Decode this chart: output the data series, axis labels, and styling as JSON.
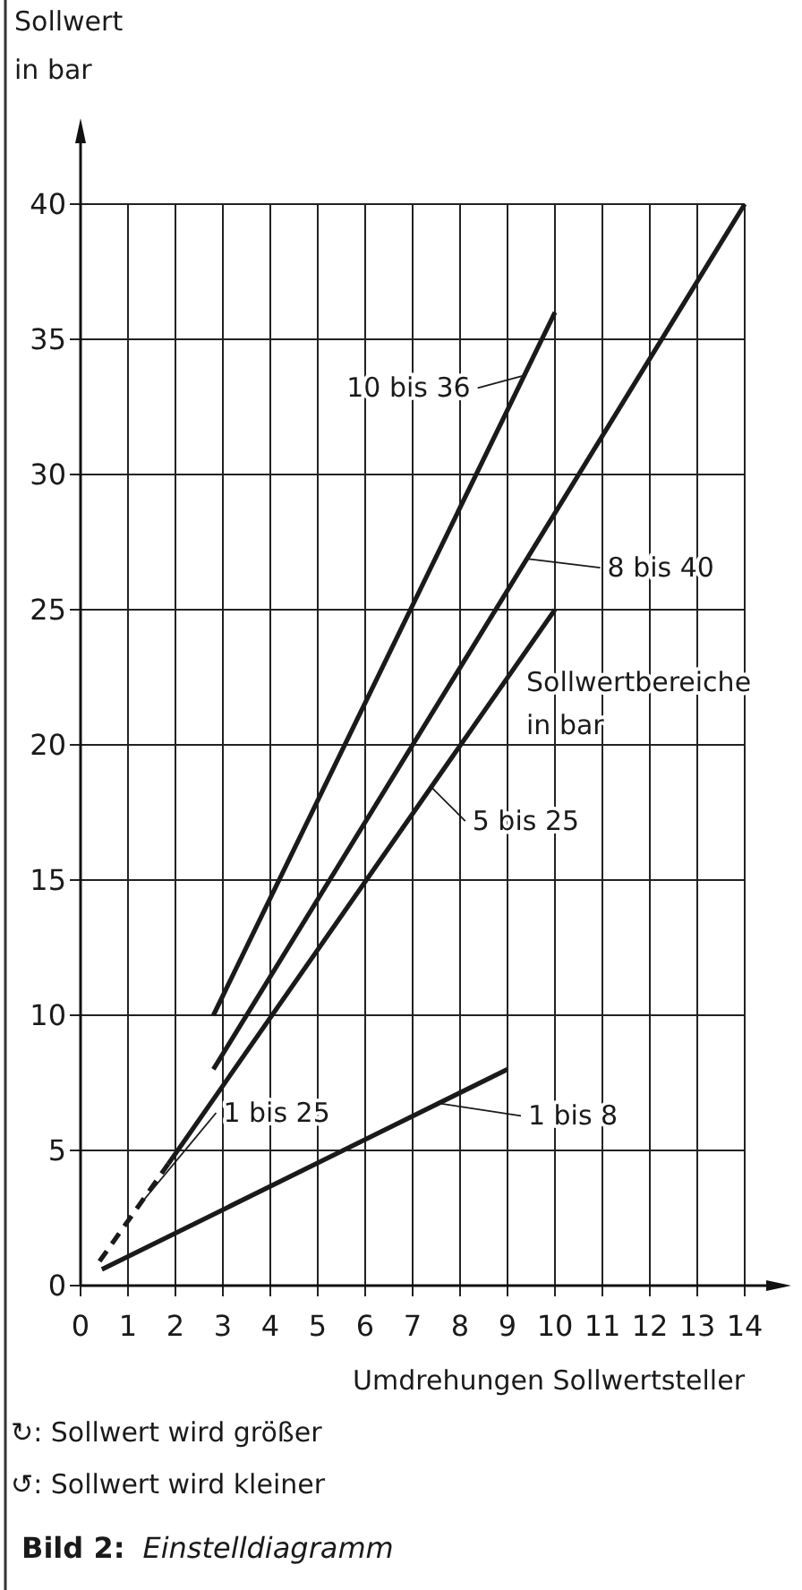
{
  "chart_data": {
    "type": "line",
    "title": "Bild 2: Einstelldiagramm",
    "ylabel": "Sollwert\nin bar",
    "xlabel": "Umdrehungen Sollwertsteller",
    "xlim": [
      0,
      14
    ],
    "ylim": [
      0,
      40
    ],
    "xticks": [
      0,
      1,
      2,
      3,
      4,
      5,
      6,
      7,
      8,
      9,
      10,
      11,
      12,
      13,
      14
    ],
    "yticks": [
      0,
      5,
      10,
      15,
      20,
      25,
      30,
      35,
      40
    ],
    "grid": true,
    "legend": "right",
    "legend_title": "Sollwertbereiche\nin bar",
    "marker": "none",
    "series": [
      {
        "name": "10 bis 36",
        "color": "#1a1a1a",
        "x": [
          2.8,
          10
        ],
        "values": [
          10,
          36
        ],
        "line_style": "solid"
      },
      {
        "name": "8 bis 40",
        "color": "#1a1a1a",
        "x": [
          2.8,
          14
        ],
        "values": [
          8,
          40
        ],
        "line_style": "solid"
      },
      {
        "name": "5 bis 25",
        "color": "#1a1a1a",
        "x": [
          1.85,
          10
        ],
        "values": [
          4.5,
          25
        ],
        "line_style": "solid"
      },
      {
        "name": "1 bis 25",
        "color": "#1a1a1a",
        "x": [
          0.4,
          1.85
        ],
        "values": [
          0.9,
          4.5
        ],
        "line_style": "dashed"
      },
      {
        "name": "1 bis 8",
        "color": "#1a1a1a",
        "x": [
          0.45,
          9
        ],
        "values": [
          0.6,
          8
        ],
        "line_style": "solid"
      }
    ],
    "annotations": [
      "↻: Sollwert wird größer",
      "↺: Sollwert wird kleiner"
    ]
  }
}
